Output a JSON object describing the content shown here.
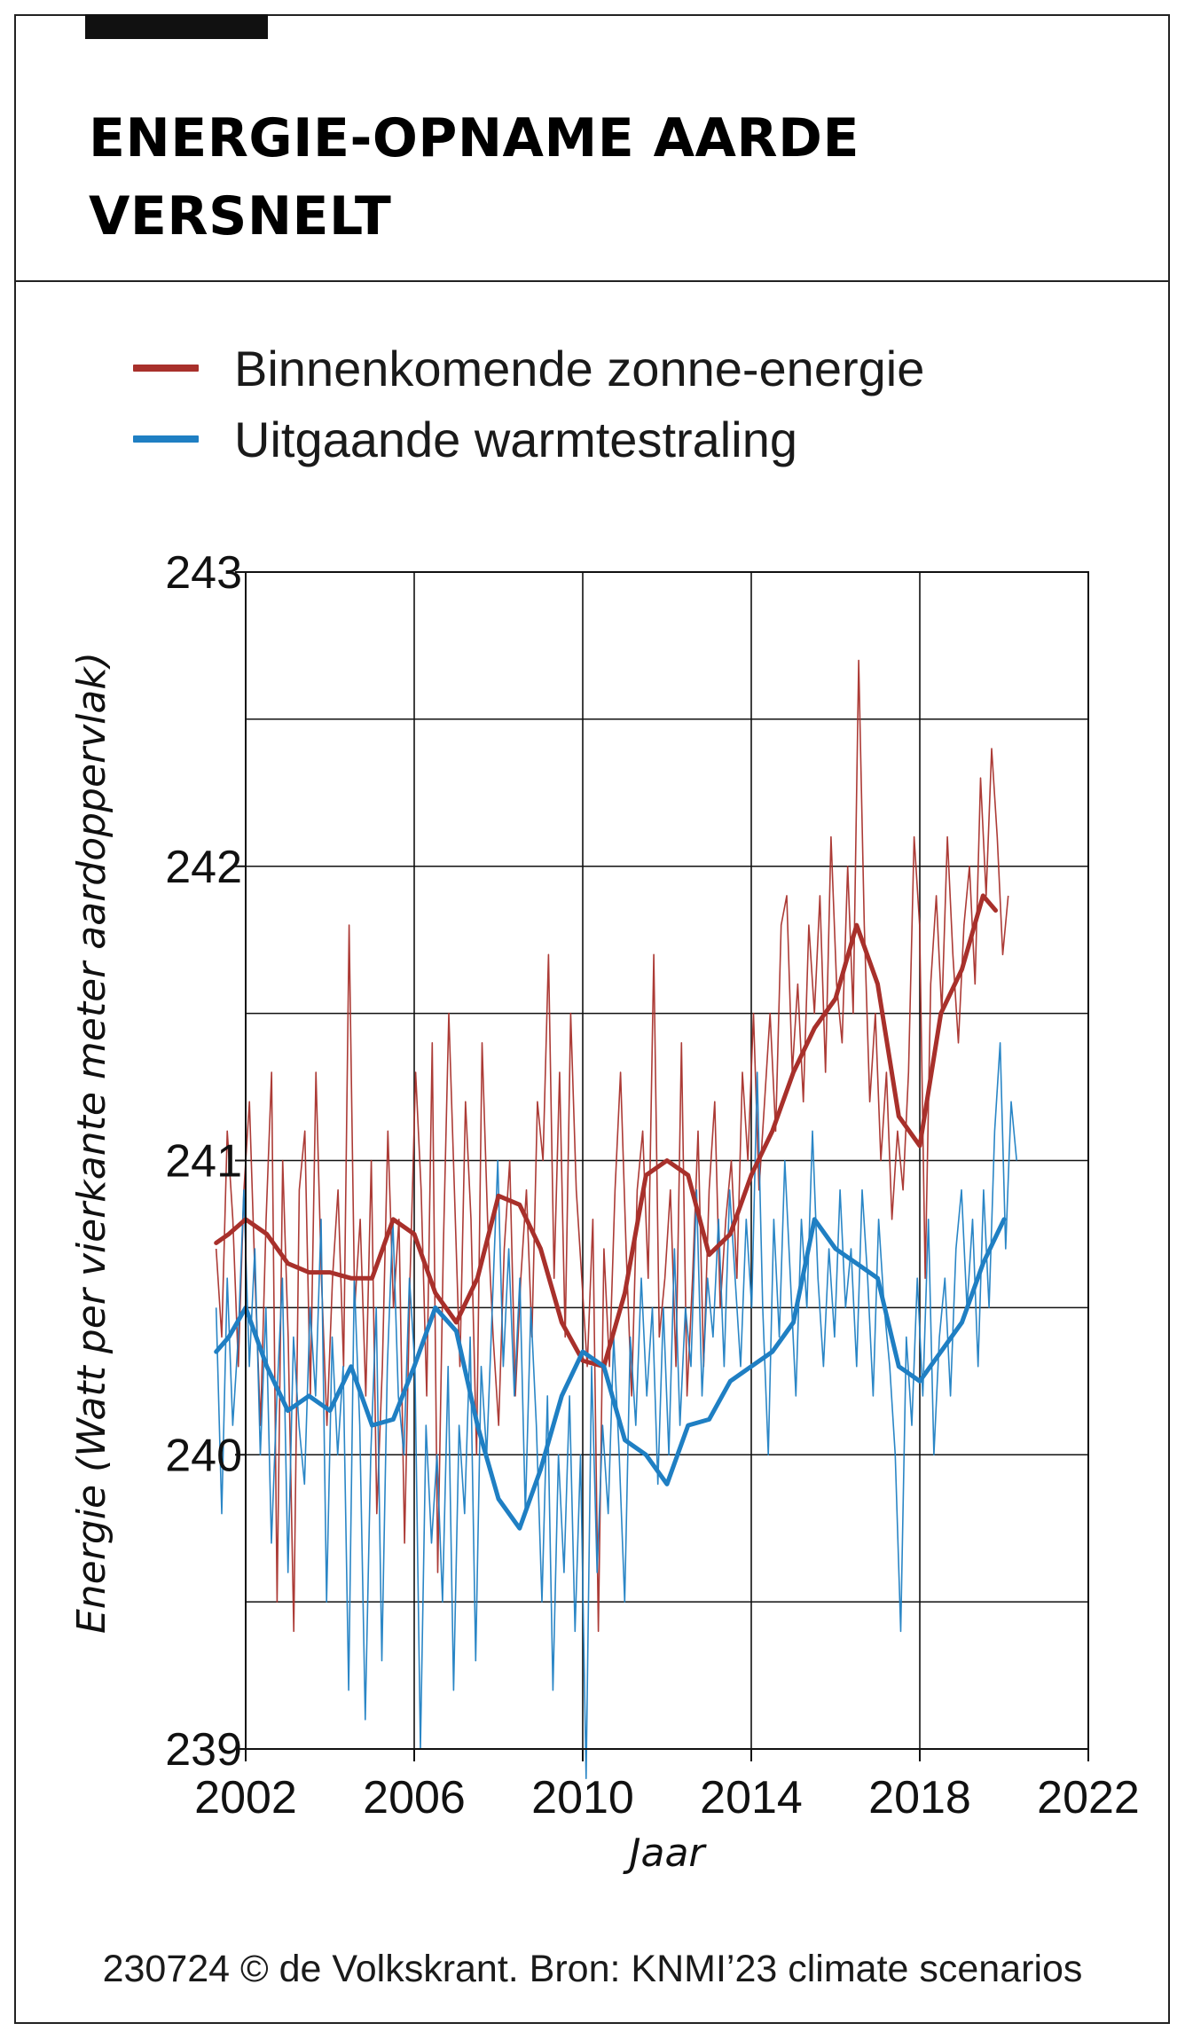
{
  "title": "ENERGIE-OPNAME AARDE VERSNELT",
  "source": "230724 © de Volkskrant. Bron: KNMI’23 climate scenarios",
  "legend": [
    {
      "label": "Binnenkomende zonne-energie",
      "color": "#a8302b"
    },
    {
      "label": "Uitgaande warmtestraling",
      "color": "#1f7fc3"
    }
  ],
  "chart_data": {
    "type": "line",
    "title": "ENERGIE-OPNAME AARDE VERSNELT",
    "xlabel": "Jaar",
    "ylabel": "Energie (Watt per vierkante meter aardoppervlak)",
    "xlim": [
      2002,
      2022
    ],
    "ylim": [
      239,
      243
    ],
    "xticks": [
      2002,
      2006,
      2010,
      2014,
      2018,
      2022
    ],
    "yticks": [
      239,
      240,
      241,
      242,
      243
    ],
    "grid": true,
    "legend_position": "top",
    "x": [
      2001,
      2002,
      2003,
      2004,
      2005,
      2006,
      2007,
      2008,
      2009,
      2010,
      2011,
      2012,
      2013,
      2014,
      2015,
      2016,
      2017,
      2018,
      2019,
      2020
    ],
    "series": [
      {
        "name": "Binnenkomende zonne-energie",
        "color": "#a8302b",
        "x": [
          2001.3,
          2001.6,
          2002.0,
          2002.5,
          2003.0,
          2003.5,
          2004.0,
          2004.5,
          2005.0,
          2005.5,
          2006.0,
          2006.5,
          2007.0,
          2007.5,
          2008.0,
          2008.5,
          2009.0,
          2009.5,
          2010.0,
          2010.5,
          2011.0,
          2011.5,
          2012.0,
          2012.5,
          2013.0,
          2013.5,
          2014.0,
          2014.5,
          2015.0,
          2015.5,
          2016.0,
          2016.5,
          2017.0,
          2017.5,
          2018.0,
          2018.5,
          2019.0,
          2019.5,
          2019.8
        ],
        "smoothed": [
          240.72,
          240.75,
          240.8,
          240.75,
          240.65,
          240.62,
          240.62,
          240.6,
          240.6,
          240.8,
          240.75,
          240.55,
          240.45,
          240.6,
          240.88,
          240.85,
          240.7,
          240.45,
          240.32,
          240.3,
          240.55,
          240.95,
          241.0,
          240.95,
          240.68,
          240.75,
          240.95,
          241.1,
          241.3,
          241.45,
          241.55,
          241.8,
          241.6,
          241.15,
          241.05,
          241.5,
          241.65,
          241.9,
          241.85
        ],
        "monthly": [
          240.7,
          240.4,
          241.1,
          240.8,
          240.3,
          240.9,
          241.2,
          240.6,
          240.1,
          240.8,
          241.3,
          239.5,
          241.0,
          240.4,
          239.4,
          240.9,
          241.1,
          240.2,
          241.3,
          240.6,
          240.1,
          240.6,
          240.9,
          240.3,
          241.8,
          240.5,
          240.8,
          240.2,
          241.0,
          239.8,
          240.3,
          241.1,
          240.5,
          240.8,
          239.7,
          240.6,
          241.3,
          240.9,
          240.2,
          241.4,
          239.6,
          240.7,
          241.5,
          240.9,
          240.3,
          241.2,
          240.8,
          240.0,
          241.4,
          240.8,
          240.4,
          240.1,
          240.7,
          241.0,
          240.2,
          240.6,
          240.9,
          240.4,
          241.2,
          241.0,
          241.7,
          240.6,
          241.3,
          240.4,
          241.5,
          240.9,
          240.6,
          240.3,
          240.8,
          239.4,
          240.7,
          240.3,
          240.9,
          241.3,
          240.7,
          240.2,
          240.9,
          241.1,
          240.6,
          241.7,
          240.4,
          240.6,
          240.9,
          240.3,
          241.4,
          240.2,
          240.6,
          241.1,
          240.3,
          240.9,
          241.2,
          240.5,
          240.8,
          241.0,
          240.6,
          241.3,
          241.0,
          241.5,
          240.9,
          241.2,
          241.5,
          241.1,
          241.8,
          241.9,
          241.3,
          241.6,
          241.2,
          241.8,
          241.5,
          241.9,
          241.3,
          242.1,
          241.6,
          241.4,
          242.0,
          241.5,
          242.7,
          241.8,
          241.2,
          241.5,
          241.0,
          241.3,
          240.8,
          241.1,
          240.9,
          241.3,
          242.1,
          241.8,
          240.6,
          241.6,
          241.9,
          241.5,
          242.1,
          241.7,
          241.4,
          241.8,
          242.0,
          241.6,
          242.3,
          241.9,
          242.4,
          242.1,
          241.7,
          241.9
        ]
      },
      {
        "name": "Uitgaande warmtestraling",
        "color": "#1f7fc3",
        "x": [
          2001.3,
          2001.6,
          2002.0,
          2002.5,
          2003.0,
          2003.5,
          2004.0,
          2004.5,
          2005.0,
          2005.5,
          2006.0,
          2006.5,
          2007.0,
          2007.5,
          2008.0,
          2008.5,
          2009.0,
          2009.5,
          2010.0,
          2010.5,
          2011.0,
          2011.5,
          2012.0,
          2012.5,
          2013.0,
          2013.5,
          2014.0,
          2014.5,
          2015.0,
          2015.5,
          2016.0,
          2016.5,
          2017.0,
          2017.5,
          2018.0,
          2018.5,
          2019.0,
          2019.5,
          2020.0
        ],
        "smoothed": [
          240.35,
          240.4,
          240.5,
          240.3,
          240.15,
          240.2,
          240.15,
          240.3,
          240.1,
          240.12,
          240.3,
          240.5,
          240.42,
          240.1,
          239.85,
          239.75,
          239.95,
          240.2,
          240.35,
          240.3,
          240.05,
          240.0,
          239.9,
          240.1,
          240.12,
          240.25,
          240.3,
          240.35,
          240.45,
          240.8,
          240.7,
          240.65,
          240.6,
          240.3,
          240.25,
          240.35,
          240.45,
          240.65,
          240.8
        ],
        "monthly": [
          240.5,
          239.8,
          240.6,
          240.1,
          240.4,
          240.9,
          240.3,
          240.7,
          240.0,
          240.5,
          239.7,
          240.2,
          240.6,
          239.6,
          240.4,
          240.1,
          239.9,
          240.5,
          240.2,
          240.8,
          239.5,
          240.4,
          240.0,
          240.3,
          239.2,
          240.6,
          240.1,
          239.1,
          240.0,
          240.5,
          239.3,
          240.3,
          240.8,
          240.2,
          240.0,
          240.6,
          240.3,
          239.0,
          240.1,
          239.7,
          240.0,
          239.5,
          240.3,
          239.2,
          240.1,
          239.8,
          240.4,
          239.3,
          240.3,
          240.0,
          240.5,
          241.0,
          240.3,
          240.7,
          240.2,
          240.6,
          239.8,
          240.5,
          240.1,
          239.5,
          240.2,
          239.2,
          240.0,
          239.6,
          240.2,
          239.4,
          240.0,
          238.9,
          240.3,
          239.6,
          240.1,
          239.8,
          240.4,
          240.0,
          239.5,
          240.4,
          240.1,
          240.6,
          240.2,
          240.5,
          239.9,
          240.5,
          240.0,
          240.7,
          240.1,
          240.5,
          240.3,
          240.9,
          240.2,
          240.6,
          240.4,
          240.8,
          240.3,
          240.9,
          240.6,
          240.3,
          240.8,
          240.5,
          241.3,
          240.5,
          240.0,
          240.8,
          240.4,
          241.0,
          240.6,
          240.2,
          240.8,
          240.5,
          241.1,
          240.6,
          240.3,
          240.7,
          240.4,
          240.9,
          240.5,
          240.7,
          240.3,
          240.9,
          240.6,
          240.2,
          240.8,
          240.5,
          240.3,
          240.0,
          239.4,
          240.4,
          240.1,
          240.6,
          240.2,
          240.8,
          240.0,
          240.4,
          240.6,
          240.2,
          240.7,
          240.9,
          240.5,
          240.8,
          240.3,
          240.9,
          240.5,
          241.1,
          241.4,
          240.7,
          241.2,
          241.0
        ]
      }
    ]
  }
}
